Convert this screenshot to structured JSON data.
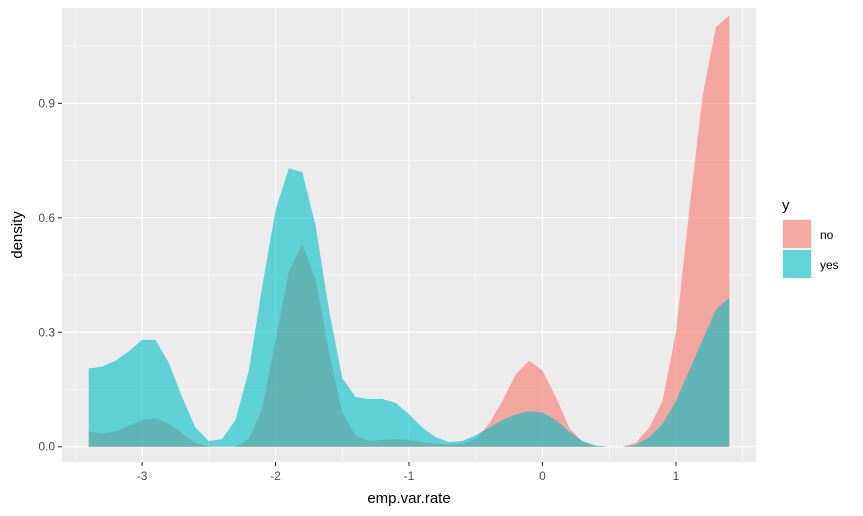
{
  "chart_data": {
    "type": "area",
    "xlabel": "emp.var.rate",
    "ylabel": "density",
    "xlim": [
      -3.6,
      1.6
    ],
    "ylim": [
      -0.04,
      1.15
    ],
    "x_ticks": [
      -3,
      -2,
      -1,
      0,
      1
    ],
    "x_tick_labels": [
      "-3",
      "-2",
      "-1",
      "0",
      "1"
    ],
    "y_ticks": [
      0.0,
      0.3,
      0.6,
      0.9
    ],
    "y_tick_labels": [
      "0.0",
      "0.3",
      "0.6",
      "0.9"
    ],
    "grid": true,
    "legend": {
      "title": "y",
      "position": "right",
      "entries": [
        {
          "label": "no",
          "color": "#F8766D"
        },
        {
          "label": "yes",
          "color": "#00BFC4"
        }
      ]
    },
    "series": [
      {
        "name": "no",
        "color": "#F8766D",
        "x": [
          -3.4,
          -3.3,
          -3.2,
          -3.1,
          -3.0,
          -2.9,
          -2.8,
          -2.7,
          -2.6,
          -2.5,
          -2.4,
          -2.3,
          -2.2,
          -2.1,
          -2.0,
          -1.9,
          -1.8,
          -1.7,
          -1.6,
          -1.5,
          -1.4,
          -1.3,
          -1.2,
          -1.1,
          -1.0,
          -0.9,
          -0.8,
          -0.7,
          -0.6,
          -0.5,
          -0.4,
          -0.3,
          -0.2,
          -0.1,
          0.0,
          0.1,
          0.2,
          0.3,
          0.4,
          0.5,
          0.6,
          0.7,
          0.8,
          0.9,
          1.0,
          1.1,
          1.2,
          1.3,
          1.4
        ],
        "values": [
          0.04,
          0.035,
          0.04,
          0.055,
          0.07,
          0.075,
          0.06,
          0.035,
          0.01,
          0.0,
          0.0,
          0.0,
          0.02,
          0.1,
          0.28,
          0.46,
          0.53,
          0.44,
          0.25,
          0.09,
          0.03,
          0.015,
          0.018,
          0.02,
          0.018,
          0.012,
          0.008,
          0.006,
          0.008,
          0.02,
          0.06,
          0.12,
          0.19,
          0.225,
          0.2,
          0.13,
          0.05,
          0.012,
          0.002,
          0.0,
          0.0,
          0.01,
          0.05,
          0.12,
          0.3,
          0.62,
          0.92,
          1.1,
          1.13
        ]
      },
      {
        "name": "yes",
        "color": "#00BFC4",
        "x": [
          -3.4,
          -3.3,
          -3.2,
          -3.1,
          -3.0,
          -2.9,
          -2.8,
          -2.7,
          -2.6,
          -2.5,
          -2.4,
          -2.3,
          -2.2,
          -2.1,
          -2.0,
          -1.9,
          -1.8,
          -1.7,
          -1.6,
          -1.5,
          -1.4,
          -1.3,
          -1.2,
          -1.1,
          -1.0,
          -0.9,
          -0.8,
          -0.7,
          -0.6,
          -0.5,
          -0.4,
          -0.3,
          -0.2,
          -0.1,
          0.0,
          0.1,
          0.2,
          0.3,
          0.4,
          0.5,
          0.6,
          0.7,
          0.8,
          0.9,
          1.0,
          1.1,
          1.2,
          1.3,
          1.4
        ],
        "values": [
          0.205,
          0.21,
          0.225,
          0.25,
          0.28,
          0.28,
          0.22,
          0.13,
          0.05,
          0.015,
          0.02,
          0.07,
          0.2,
          0.42,
          0.62,
          0.73,
          0.72,
          0.58,
          0.36,
          0.18,
          0.13,
          0.125,
          0.125,
          0.115,
          0.085,
          0.05,
          0.025,
          0.012,
          0.015,
          0.03,
          0.05,
          0.07,
          0.085,
          0.093,
          0.09,
          0.07,
          0.04,
          0.015,
          0.003,
          0.0,
          0.0,
          0.005,
          0.025,
          0.06,
          0.12,
          0.2,
          0.28,
          0.36,
          0.39
        ]
      }
    ]
  }
}
